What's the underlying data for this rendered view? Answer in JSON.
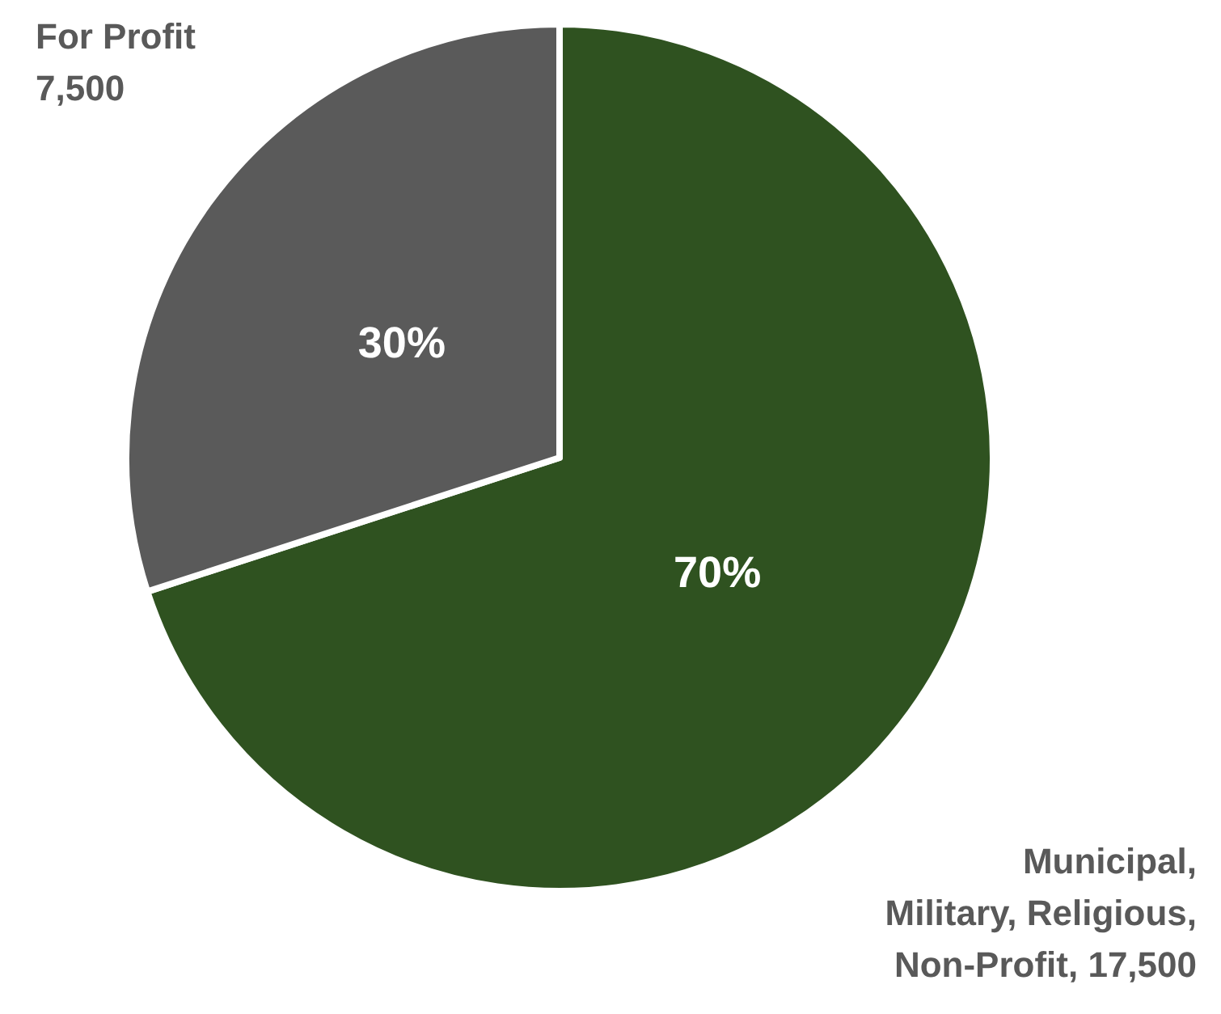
{
  "chart_data": {
    "type": "pie",
    "categories": [
      "Municipal, Military, Religious, Non-Profit, 17,500",
      "For Profit 7,500"
    ],
    "values": [
      70,
      30
    ],
    "colors": [
      "#2f5220",
      "#5a5a5a"
    ],
    "value_labels": [
      "70%",
      "30%"
    ]
  }
}
